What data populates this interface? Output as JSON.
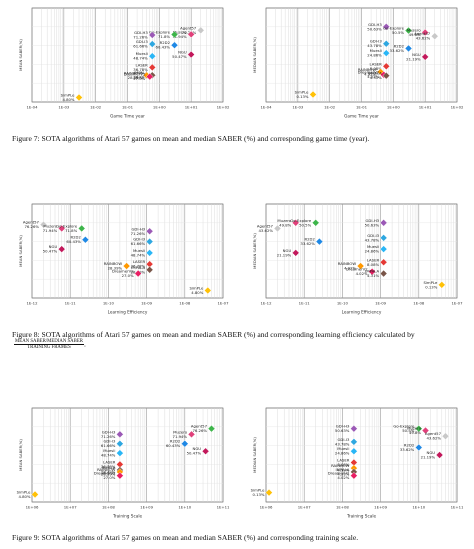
{
  "figures": [
    {
      "caption_number": "Figure 7:",
      "caption_text": "SOTA algorithms of Atari 57 games on mean and median SABER (%) and corresponding game time (year).",
      "chart_data": [
        {
          "type": "scatter",
          "xlabel": "Game Time year",
          "ylabel": "MEAN SABER(%)",
          "xscale": "log",
          "xticks": [
            "1E-04",
            "1E-03",
            "1E-02",
            "1E-01",
            "1E+00",
            "1E+01",
            "1E+02"
          ],
          "xlim": [
            0.0001,
            100
          ],
          "ylim": [
            0,
            100
          ],
          "points": [
            {
              "name": "Agent57",
              "value": "76.26%",
              "x": 20,
              "y": 76.26,
              "color": "#c8c8c8"
            },
            {
              "name": "Muzero",
              "value": "71.94%",
              "x": 10,
              "y": 71.94,
              "color": "#e0407a"
            },
            {
              "name": "Go-Explore",
              "value": "71.8%",
              "x": 3,
              "y": 71.8,
              "color": "#3db54a"
            },
            {
              "name": "GDI-H3",
              "value": "71.26%",
              "x": 0.6,
              "y": 71.26,
              "color": "#9b59b6"
            },
            {
              "name": "GDI-I3",
              "value": "61.66%",
              "x": 0.6,
              "y": 61.66,
              "color": "#2ea7e0"
            },
            {
              "name": "R2D2",
              "value": "60.43%",
              "x": 3,
              "y": 60.43,
              "color": "#1e88e5"
            },
            {
              "name": "NGU",
              "value": "50.47%",
              "x": 10,
              "y": 50.47,
              "color": "#c2185b"
            },
            {
              "name": "Muesli",
              "value": "48.74%",
              "x": 0.6,
              "y": 48.74,
              "color": "#29b6f6"
            },
            {
              "name": "LASER",
              "value": "36.78%",
              "x": 0.6,
              "y": 36.78,
              "color": "#e53935"
            },
            {
              "name": "IMPALA",
              "value": "28.49%",
              "x": 0.6,
              "y": 28.49,
              "color": "#795548"
            },
            {
              "name": "RAINBOW",
              "value": "28.39%",
              "x": 0.4,
              "y": 28.39,
              "color": "#ff9800"
            },
            {
              "name": "DreamerV2",
              "value": "27.0%",
              "x": 0.5,
              "y": 27.0,
              "color": "#e91e63"
            },
            {
              "name": "SimPLe",
              "value": "4.80%",
              "x": 0.003,
              "y": 4.8,
              "color": "#ffc107"
            }
          ]
        },
        {
          "type": "scatter",
          "xlabel": "Game Time year",
          "ylabel": "MEDIAN SABER(%)",
          "xscale": "log",
          "xticks": [
            "1E-04",
            "1E-03",
            "1E-02",
            "1E-01",
            "1E+00",
            "1E+01",
            "1E+02"
          ],
          "xlim": [
            0.0001,
            100
          ],
          "ylim": [
            0,
            100
          ],
          "points": [
            {
              "name": "GDI-H3",
              "value": "50.63%",
              "x": 0.6,
              "y": 80,
              "color": "#9b59b6"
            },
            {
              "name": "Go-Explore",
              "value": "50.5%",
              "x": 3,
              "y": 76,
              "color": "#3db54a"
            },
            {
              "name": "Muzero",
              "value": "49.8%",
              "x": 10,
              "y": 74,
              "color": "#e0407a"
            },
            {
              "name": "Agent57",
              "value": "43.62%",
              "x": 20,
              "y": 70,
              "color": "#c8c8c8"
            },
            {
              "name": "GDI-I3",
              "value": "43.78%",
              "x": 0.6,
              "y": 62,
              "color": "#2ea7e0"
            },
            {
              "name": "R2D2",
              "value": "33.62%",
              "x": 3,
              "y": 57,
              "color": "#1e88e5"
            },
            {
              "name": "Muesli",
              "value": "24.86%",
              "x": 0.6,
              "y": 52,
              "color": "#29b6f6"
            },
            {
              "name": "NGU",
              "value": "21.19%",
              "x": 10,
              "y": 48,
              "color": "#c2185b"
            },
            {
              "name": "LASER",
              "value": "8.08%",
              "x": 0.6,
              "y": 38,
              "color": "#e53935"
            },
            {
              "name": "RAINBOW",
              "value": "4.92%",
              "x": 0.4,
              "y": 32,
              "color": "#ff9800"
            },
            {
              "name": "DreamerV2",
              "value": "4.02%",
              "x": 0.5,
              "y": 29,
              "color": "#e91e63"
            },
            {
              "name": "IMPALA",
              "value": "4.31%",
              "x": 0.6,
              "y": 28,
              "color": "#795548"
            },
            {
              "name": "SimPLe",
              "value": "0.13%",
              "x": 0.003,
              "y": 8,
              "color": "#ffc107"
            }
          ]
        }
      ]
    },
    {
      "caption_number": "Figure 8:",
      "caption_text": "SOTA algorithms of Atari 57 games on mean and median SABER (%) and corresponding learning efficiency calculated by",
      "frac_top": "MEAN SABER/MEDIAN SABER",
      "frac_bottom": "TRAINING FRAMES",
      "caption_end": ".",
      "chart_data": [
        {
          "type": "scatter",
          "xlabel": "Learning Efficiency",
          "ylabel": "MEAN SABER(%)",
          "xscale": "log",
          "xticks": [
            "1E-12",
            "1E-11",
            "1E-10",
            "1E-09",
            "1E-08",
            "1E-07"
          ],
          "xlim": [
            1e-12,
            1e-07
          ],
          "ylim": [
            0,
            100
          ],
          "points": [
            {
              "name": "Agent57",
              "value": "76.26%",
              "x": 2e-12,
              "y": 78,
              "color": "#c8c8c8"
            },
            {
              "name": "Muzero",
              "value": "71.94%",
              "x": 6e-12,
              "y": 74,
              "color": "#e0407a"
            },
            {
              "name": "Go-Explore",
              "value": "71.8%",
              "x": 2e-11,
              "y": 74,
              "color": "#3db54a"
            },
            {
              "name": "GDI-H3",
              "value": "71.26%",
              "x": 1.2e-09,
              "y": 71,
              "color": "#9b59b6"
            },
            {
              "name": "R2D2",
              "value": "60.43%",
              "x": 2.5e-11,
              "y": 62,
              "color": "#1e88e5"
            },
            {
              "name": "GDI-I3",
              "value": "61.66%",
              "x": 1.2e-09,
              "y": 60,
              "color": "#2ea7e0"
            },
            {
              "name": "NGU",
              "value": "50.47%",
              "x": 6e-12,
              "y": 52,
              "color": "#c2185b"
            },
            {
              "name": "Muesli",
              "value": "48.74%",
              "x": 1.2e-09,
              "y": 48,
              "color": "#29b6f6"
            },
            {
              "name": "LASER",
              "value": "36.78%",
              "x": 1.2e-09,
              "y": 36,
              "color": "#e53935"
            },
            {
              "name": "RAINBOW",
              "value": "28.39%",
              "x": 3e-10,
              "y": 34,
              "color": "#ff9800"
            },
            {
              "name": "IMPALA",
              "value": "28.49%",
              "x": 1.2e-09,
              "y": 30,
              "color": "#795548"
            },
            {
              "name": "DreamerV2",
              "value": "27.0%",
              "x": 6e-10,
              "y": 26,
              "color": "#e91e63"
            },
            {
              "name": "SimPLe",
              "value": "4.80%",
              "x": 4e-08,
              "y": 8,
              "color": "#ffc107"
            }
          ]
        },
        {
          "type": "scatter",
          "xlabel": "Learning Efficiency",
          "ylabel": "MEDIAN SABER(%)",
          "xscale": "log",
          "xticks": [
            "1E-12",
            "1E-11",
            "1E-10",
            "1E-09",
            "1E-08",
            "1E-07"
          ],
          "xlim": [
            1e-12,
            1e-07
          ],
          "ylim": [
            0,
            100
          ],
          "points": [
            {
              "name": "Muzero",
              "value": "49.8%",
              "x": 6e-12,
              "y": 80,
              "color": "#e0407a"
            },
            {
              "name": "Go-Explore",
              "value": "50.5%",
              "x": 2e-11,
              "y": 80,
              "color": "#3db54a"
            },
            {
              "name": "GDI-H3",
              "value": "50.63%",
              "x": 1.2e-09,
              "y": 80,
              "color": "#9b59b6"
            },
            {
              "name": "Agent57",
              "value": "43.62%",
              "x": 2e-12,
              "y": 74,
              "color": "#c8c8c8"
            },
            {
              "name": "GDI-I3",
              "value": "43.78%",
              "x": 1.2e-09,
              "y": 64,
              "color": "#2ea7e0"
            },
            {
              "name": "R2D2",
              "value": "33.62%",
              "x": 2.5e-11,
              "y": 60,
              "color": "#1e88e5"
            },
            {
              "name": "Muesli",
              "value": "24.86%",
              "x": 1.2e-09,
              "y": 52,
              "color": "#29b6f6"
            },
            {
              "name": "NGU",
              "value": "21.19%",
              "x": 6e-12,
              "y": 48,
              "color": "#c2185b"
            },
            {
              "name": "LASER",
              "value": "8.08%",
              "x": 1.2e-09,
              "y": 38,
              "color": "#e53935"
            },
            {
              "name": "RAINBOW",
              "value": "4.92%",
              "x": 3e-10,
              "y": 34,
              "color": "#ff9800"
            },
            {
              "name": "DreamerV2",
              "value": "4.02%",
              "x": 6e-10,
              "y": 28,
              "color": "#e91e63"
            },
            {
              "name": "IMPALA",
              "value": "4.31%",
              "x": 1.2e-09,
              "y": 26,
              "color": "#795548"
            },
            {
              "name": "SimPLe",
              "value": "0.13%",
              "x": 4e-08,
              "y": 14,
              "color": "#ffc107"
            }
          ]
        }
      ]
    },
    {
      "caption_number": "Figure 9:",
      "caption_text": "SOTA algorithms of Atari 57 games on mean and median SABER (%) and corresponding training scale.",
      "chart_data": [
        {
          "type": "scatter",
          "xlabel": "Training Scale",
          "ylabel": "MEAN SABER(%)",
          "xscale": "log",
          "xticks": [
            "1E+06",
            "1E+07",
            "1E+08",
            "1E+09",
            "1E+10",
            "1E+11"
          ],
          "xlim": [
            1000000,
            100000000000
          ],
          "ylim": [
            0,
            100
          ],
          "points": [
            {
              "name": "Agent57",
              "value": "76.26%",
              "x": 50000000000.0,
              "y": 78,
              "color": "#3db54a"
            },
            {
              "name": "GDI-H3",
              "value": "71.26%",
              "x": 200000000.0,
              "y": 72,
              "color": "#9b59b6"
            },
            {
              "name": "Muzero",
              "value": "71.94%",
              "x": 15000000000.0,
              "y": 72,
              "color": "#e0407a"
            },
            {
              "name": "R2D2",
              "value": "60.43%",
              "x": 10000000000.0,
              "y": 62,
              "color": "#1e88e5"
            },
            {
              "name": "GDI-I3",
              "value": "61.66%",
              "x": 200000000.0,
              "y": 62,
              "color": "#2ea7e0"
            },
            {
              "name": "NGU",
              "value": "50.47%",
              "x": 35000000000.0,
              "y": 54,
              "color": "#c2185b"
            },
            {
              "name": "Muesli",
              "value": "48.74%",
              "x": 200000000.0,
              "y": 52,
              "color": "#29b6f6"
            },
            {
              "name": "LASER",
              "value": "36.78%",
              "x": 200000000.0,
              "y": 40,
              "color": "#e53935"
            },
            {
              "name": "IMPALA",
              "value": "28.49%",
              "x": 200000000.0,
              "y": 34,
              "color": "#795548"
            },
            {
              "name": "RAINBOW",
              "value": "28.39%",
              "x": 200000000.0,
              "y": 32,
              "color": "#ff9800"
            },
            {
              "name": "DreamerV2",
              "value": "27.0%",
              "x": 200000000.0,
              "y": 28,
              "color": "#e91e63"
            },
            {
              "name": "SimPLe",
              "value": "4.80%",
              "x": 1200000.0,
              "y": 8,
              "color": "#ffc107"
            }
          ]
        },
        {
          "type": "scatter",
          "xlabel": "Training Scale",
          "ylabel": "MEDIAN SABER(%)",
          "xscale": "log",
          "xticks": [
            "1E+06",
            "1E+07",
            "1E+08",
            "1E+09",
            "1E+10",
            "1E+11"
          ],
          "xlim": [
            1000000,
            100000000000
          ],
          "ylim": [
            0,
            100
          ],
          "points": [
            {
              "name": "GDI-H3",
              "value": "50.63%",
              "x": 200000000.0,
              "y": 78,
              "color": "#9b59b6"
            },
            {
              "name": "Go-Explore",
              "value": "50.5%",
              "x": 10000000000.0,
              "y": 78,
              "color": "#3db54a"
            },
            {
              "name": "Muzero",
              "value": "49.8%",
              "x": 15000000000.0,
              "y": 76,
              "color": "#e0407a"
            },
            {
              "name": "Agent57",
              "value": "43.62%",
              "x": 50000000000.0,
              "y": 70,
              "color": "#c8c8c8"
            },
            {
              "name": "GDI-I3",
              "value": "43.78%",
              "x": 200000000.0,
              "y": 64,
              "color": "#2ea7e0"
            },
            {
              "name": "R2D2",
              "value": "33.62%",
              "x": 10000000000.0,
              "y": 58,
              "color": "#1e88e5"
            },
            {
              "name": "Muesli",
              "value": "24.86%",
              "x": 200000000.0,
              "y": 54,
              "color": "#29b6f6"
            },
            {
              "name": "NGU",
              "value": "21.19%",
              "x": 35000000000.0,
              "y": 50,
              "color": "#c2185b"
            },
            {
              "name": "LASER",
              "value": "8.08%",
              "x": 200000000.0,
              "y": 42,
              "color": "#e53935"
            },
            {
              "name": "RAINBOW",
              "value": "4.92%",
              "x": 200000000.0,
              "y": 36,
              "color": "#ff9800"
            },
            {
              "name": "IMPALA",
              "value": "4.31%",
              "x": 200000000.0,
              "y": 32,
              "color": "#795548"
            },
            {
              "name": "DreamerV2",
              "value": "4.02%",
              "x": 200000000.0,
              "y": 28,
              "color": "#e91e63"
            },
            {
              "name": "SimPLe",
              "value": "0.13%",
              "x": 1200000.0,
              "y": 10,
              "color": "#ffc107"
            }
          ]
        }
      ]
    }
  ]
}
